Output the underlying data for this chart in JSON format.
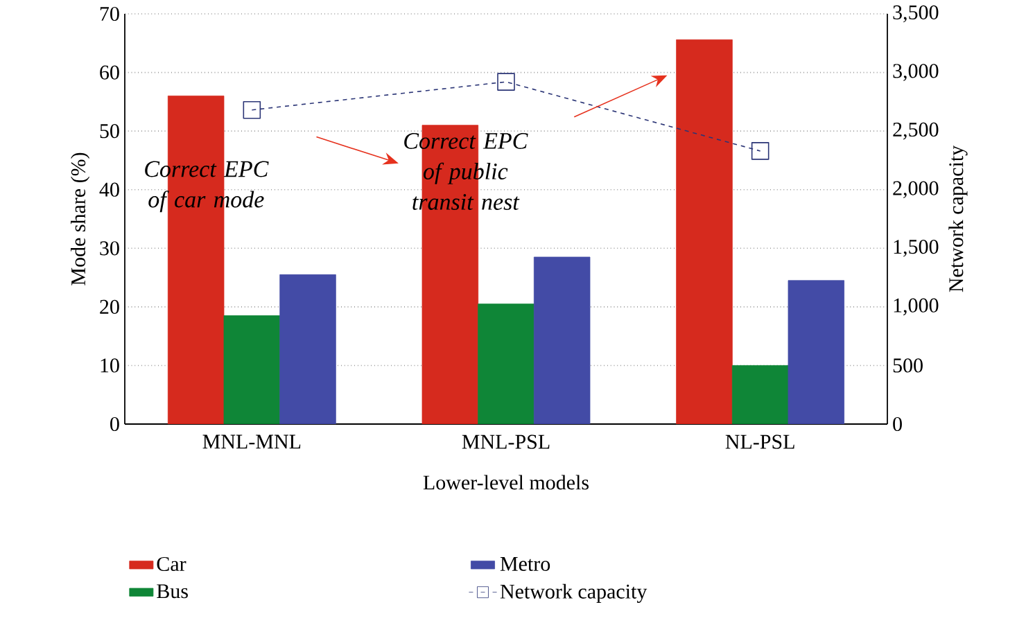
{
  "chart_data": {
    "type": "bar",
    "categories": [
      "MNL-MNL",
      "MNL-PSL",
      "NL-PSL"
    ],
    "series": [
      {
        "name": "Car",
        "color": "#d62a1e",
        "values": [
          56,
          51,
          65.6
        ]
      },
      {
        "name": "Bus",
        "color": "#0f8637",
        "values": [
          18.5,
          20.5,
          10
        ]
      },
      {
        "name": "Metro",
        "color": "#434ba6",
        "values": [
          25.5,
          28.5,
          24.5
        ]
      },
      {
        "name": "Network capacity",
        "type": "line",
        "axis": "y2",
        "color": "#2b3576",
        "marker": "square",
        "line_style": "dashed",
        "values": [
          2680,
          2920,
          2330
        ]
      }
    ],
    "xlabel": "Lower-level models",
    "ylabel": "Mode share (%)",
    "y2label": "Network capacity",
    "ylim": [
      0,
      70
    ],
    "yticks": [
      0,
      10,
      20,
      30,
      40,
      50,
      60,
      70
    ],
    "y2lim": [
      0,
      3500
    ],
    "y2ticks": [
      0,
      500,
      {
        "value": 1000,
        "label": "1,000"
      },
      {
        "value": 1500,
        "label": "1,500"
      },
      {
        "value": 2000,
        "label": "2,000"
      },
      {
        "value": 2500,
        "label": "2,500"
      },
      {
        "value": 3000,
        "label": "3,000"
      },
      {
        "value": 3500,
        "label": "3,500"
      }
    ],
    "grid": "y",
    "legend": "bottom",
    "annotations": [
      "Correct EPC of car mode",
      "Correct EPC of public transit nest"
    ]
  }
}
